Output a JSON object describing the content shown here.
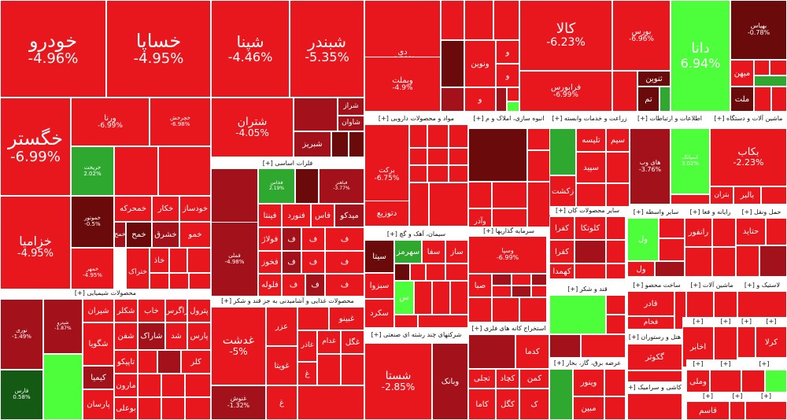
{
  "chart_data": {
    "type": "treemap",
    "colors": {
      "dark": "#6b0a0a",
      "maroon": "#a3121a",
      "red": "#e8161d",
      "bright": "#ff1a1a",
      "green": "#2fa82f",
      "lime": "#4cff3a",
      "dgreen": "#145a14"
    },
    "sections": [
      {
        "name": "محصولات شیمیایی [+]"
      },
      {
        "name": "فلزات اساسی [+]"
      },
      {
        "name": "محصولات غذایی و آشامیدنی به جز قند و شکر [+]"
      },
      {
        "name": "مواد و محصولات دارویی [+]"
      },
      {
        "name": "سیمان، آهک و گچ [+]"
      },
      {
        "name": "شرکتهای چند رشته ای صنعتی [+]"
      },
      {
        "name": "انبوه سازی، املاک و م [+]"
      },
      {
        "name": "سرمایه گذاریها [+]"
      },
      {
        "name": "استخراج کانه های فلزی [+]"
      },
      {
        "name": "زراعت و خدمات وابسته [+]"
      },
      {
        "name": "سایر محصولات کان [+]"
      },
      {
        "name": "قند و شکر [+]"
      },
      {
        "name": "عرضه برق، گاز، بخار [+]"
      },
      {
        "name": "اطلاعات و ارتباطات [+]"
      },
      {
        "name": "ماشین آلات و دستگاه [+]"
      },
      {
        "name": "سایر واسطه [+]"
      },
      {
        "name": "رایانه و فعا [+]"
      },
      {
        "name": "حمل ونقل [+]"
      },
      {
        "name": "ساخت محصو [+]"
      },
      {
        "name": "ماشین آلات [+]"
      },
      {
        "name": "لاستیک و [+]"
      },
      {
        "name": "هتل و رستوران [+]"
      },
      {
        "name": "کاشی و سرامیک [+]"
      }
    ],
    "tiles": [
      {
        "name": "خودرو",
        "change": "-4.96%"
      },
      {
        "name": "خساپا",
        "change": "-4.95%"
      },
      {
        "name": "شپنا",
        "change": "-4.46%"
      },
      {
        "name": "شبندر",
        "change": "-5.35%"
      },
      {
        "name": "دی",
        "change": "-4.89%"
      },
      {
        "name": "وبملت",
        "change": "-4.9%"
      },
      {
        "name": "ونوین",
        "change": ""
      },
      {
        "name": "کالا",
        "change": "-6.23%"
      },
      {
        "name": "فرابورس",
        "change": "-6.99%"
      },
      {
        "name": "بورس",
        "change": "-6.96%"
      },
      {
        "name": "ثنوین",
        "change": ""
      },
      {
        "name": "دانا",
        "change": "6.94%"
      },
      {
        "name": "بهپاس",
        "change": "-0.78%"
      },
      {
        "name": "میهن",
        "change": ""
      },
      {
        "name": "ملت",
        "change": ""
      },
      {
        "name": "خگستر",
        "change": "-6.99%"
      },
      {
        "name": "خزامیا",
        "change": "-4.95%"
      },
      {
        "name": "ورنا",
        "change": "-6.99%"
      },
      {
        "name": "خچرخش",
        "change": "-6.98%"
      },
      {
        "name": "خریخت",
        "change": "2.02%"
      },
      {
        "name": "خموتور",
        "change": "-0.5%"
      },
      {
        "name": "خمحرکه",
        "change": ""
      },
      {
        "name": "خکار",
        "change": ""
      },
      {
        "name": "خودساز",
        "change": ""
      },
      {
        "name": "خشرق",
        "change": ""
      },
      {
        "name": "خمهر",
        "change": "-4.95%"
      },
      {
        "name": "ختراک",
        "change": ""
      },
      {
        "name": "خزر",
        "change": ""
      },
      {
        "name": "شتران",
        "change": "-4.05%"
      },
      {
        "name": "شراز",
        "change": ""
      },
      {
        "name": "شاوان",
        "change": ""
      },
      {
        "name": "شبریز",
        "change": ""
      },
      {
        "name": "فولاد",
        "change": "-2.78%"
      },
      {
        "name": "فملی",
        "change": "-4.98%"
      },
      {
        "name": "فخاس",
        "change": "2.19%"
      },
      {
        "name": "فینتا",
        "change": ""
      },
      {
        "name": "فولاژ",
        "change": ""
      },
      {
        "name": "فخوز",
        "change": ""
      },
      {
        "name": "فلوله",
        "change": ""
      },
      {
        "name": "فنورد",
        "change": ""
      },
      {
        "name": "فاس",
        "change": ""
      },
      {
        "name": "میدکو",
        "change": ""
      },
      {
        "name": "برکت",
        "change": "-6.75%"
      },
      {
        "name": "دتوزیع",
        "change": ""
      },
      {
        "name": "سیتا",
        "change": ""
      },
      {
        "name": "سهرمز",
        "change": ""
      },
      {
        "name": "سبزوا",
        "change": ""
      },
      {
        "name": "سکرد",
        "change": ""
      },
      {
        "name": "شستا",
        "change": "-2.85%"
      },
      {
        "name": "وبانک",
        "change": ""
      },
      {
        "name": "وسپا",
        "change": "-6.99%"
      },
      {
        "name": "کگل",
        "change": ""
      },
      {
        "name": "کچاد",
        "change": ""
      },
      {
        "name": "کاما",
        "change": ""
      },
      {
        "name": "وپارس",
        "change": ""
      },
      {
        "name": "زکشت",
        "change": ""
      },
      {
        "name": "سیمرغ",
        "change": ""
      },
      {
        "name": "همراه",
        "change": "-3.76%"
      },
      {
        "name": "اسیاتک",
        "change": "3.02%"
      },
      {
        "name": "بکاب",
        "change": "-2.23%"
      },
      {
        "name": "غدشت",
        "change": "-5%"
      },
      {
        "name": "غنوش",
        "change": "-1.32%"
      },
      {
        "name": "نوری",
        "change": "-1.49%"
      },
      {
        "name": "فارس",
        "change": "0.58%"
      },
      {
        "name": "شپترو",
        "change": "-1.87%"
      },
      {
        "name": "شیران",
        "change": ""
      },
      {
        "name": "شگویا",
        "change": ""
      },
      {
        "name": "شفن",
        "change": ""
      },
      {
        "name": "شکلر",
        "change": ""
      },
      {
        "name": "پارسان",
        "change": ""
      },
      {
        "name": "آریا",
        "change": ""
      },
      {
        "name": "بوعلی",
        "change": ""
      },
      {
        "name": "مارون",
        "change": ""
      },
      {
        "name": "تاپیکو",
        "change": ""
      },
      {
        "name": "کرماشا",
        "change": ""
      },
      {
        "name": "زاگرس",
        "change": ""
      },
      {
        "name": "پترول",
        "change": ""
      },
      {
        "name": "پارس",
        "change": ""
      },
      {
        "name": "شیمیا",
        "change": ""
      },
      {
        "name": "کلر",
        "change": ""
      },
      {
        "name": "شاراک",
        "change": ""
      },
      {
        "name": "شدن",
        "change": ""
      },
      {
        "name": "غگل",
        "change": ""
      },
      {
        "name": "غبینو",
        "change": ""
      },
      {
        "name": "غدام",
        "change": ""
      },
      {
        "name": "غاذر",
        "change": ""
      },
      {
        "name": "غویتا",
        "change": ""
      },
      {
        "name": "غزر",
        "change": ""
      },
      {
        "name": "تاپیکو",
        "change": ""
      },
      {
        "name": "کچاد",
        "change": ""
      },
      {
        "name": "بهپاک",
        "change": ""
      },
      {
        "name": "قچار",
        "change": ""
      },
      {
        "name": "فخاس",
        "change": ""
      },
      {
        "name": "کگل",
        "change": ""
      },
      {
        "name": "کمنگنز",
        "change": ""
      },
      {
        "name": "کدما",
        "change": ""
      },
      {
        "name": "تاپکیش",
        "change": ""
      },
      {
        "name": "کاوه",
        "change": ""
      },
      {
        "name": "قثابت",
        "change": ""
      },
      {
        "name": "کرمان",
        "change": ""
      },
      {
        "name": "کبافق",
        "change": ""
      }
    ]
  },
  "labels": {
    "h_chem": "محصولات شیمیایی [+]",
    "h_metal": "فلزات اساسی [+]",
    "h_food": "محصولات غذایی و آشامیدنی به جز قند و شکر [+]",
    "h_pharma": "مواد و محصولات دارویی [+]",
    "h_cement": "سیمان، آهک و گچ [+]",
    "h_multi": "شرکتهای چند رشته ای صنعتی [+]",
    "h_build": "انبوه سازی، املاک و م [+]",
    "h_invest": "سرمایه گذاریها [+]",
    "h_mine": "استخراج کانه های فلزی [+]",
    "h_agri": "زراعت و خدمات وابسته [+]",
    "h_other_mine": "سایر محصولات کان [+]",
    "h_sugar": "قند و شکر [+]",
    "h_power": "عرضه برق، گاز، بخار [+]",
    "h_ict": "اطلاعات و ارتباطات [+]",
    "h_machine": "ماشین آلات و دستگاه [+]",
    "h_broker": "سایر واسطه [+]",
    "h_computer": "رایانه و فعا [+]",
    "h_transport": "حمل ونقل [+]",
    "h_construct": "ساخت محصو [+]",
    "h_machine2": "ماشین آلات [+]",
    "h_rubber": "لاستیک و [+]",
    "h_hotel": "هتل و رستوران [+]",
    "h_tile": "کاشی و سرامیک [+]",
    "h_plus": "[+]"
  },
  "tile_text": {
    "t_khodro": "خودرو",
    "c_khodro": "-4.96%",
    "t_khsapa": "خساپا",
    "c_khsapa": "-4.95%",
    "t_shepna": "شپنا",
    "c_shepna": "-4.46%",
    "t_shbandar": "شبندر",
    "c_shbandar": "-5.35%",
    "t_dey": "دی",
    "c_dey": "-4.89%",
    "t_vbmellat": "وبملت",
    "c_vbmellat": "-4.9%",
    "t_vnovin": "ونوین",
    "t_kala": "کالا",
    "c_kala": "-6.23%",
    "t_farabourse": "فرابورس",
    "c_farabourse": "-6.99%",
    "t_bourse": "بورس",
    "c_bourse": "-6.96%",
    "t_thnovin": "ثنوین",
    "t_dana": "دانا",
    "c_dana": "6.94%",
    "t_behpas": "بهپاس",
    "c_behpas": "-0.78%",
    "t_mihan": "میهن",
    "t_mellat": "ملت",
    "t_khgostar": "خگستر",
    "c_khgostar": "-6.99%",
    "t_khzamia": "خزامیا",
    "c_khzamia": "-4.95%",
    "t_vorna": "ورنا",
    "c_vorna": "-6.99%",
    "t_khcharkhesh": "خچرخش",
    "c_khcharkhesh": "-6.98%",
    "t_khrikht": "خریخت",
    "c_khrikht": "2.02%",
    "t_khmotor": "خموتور",
    "c_khmotor": "-0.5%",
    "t_khmoharekeh": "خمحرکه",
    "t_khkar": "خکار",
    "t_khodsaz": "خودساز",
    "t_khsharq": "خشرق",
    "t_khmehr": "خمهر",
    "c_khmehr": "-4.95%",
    "t_khterak": "ختراک",
    "t_khzar": "خزر",
    "t_khmo": "خمو",
    "t_khmah": "خمح",
    "t_khaz": "خاذ",
    "t_shtran": "شتران",
    "c_shtran": "-4.05%",
    "t_shraz": "شراز",
    "t_shavan": "شاوان",
    "t_shbriz": "شبریز",
    "t_foolad": "فولاد",
    "c_foolad": "-2.78%",
    "t_fmeli": "فملی",
    "c_fmeli": "-4.98%",
    "t_fkhas": "فخاس",
    "c_fkhas": "2.19%",
    "t_fbahonar": "فباهنر",
    "c_fbahonar": "-3.77%",
    "t_finta": "فینتا",
    "t_folaj": "فولاژ",
    "t_fkhoz": "فخوز",
    "t_flooleh": "فلوله",
    "t_fnoord": "فنورد",
    "t_fas": "فاس",
    "t_midko": "میدکو",
    "t_f": "ف",
    "t_barekat": "برکت",
    "c_barekat": "-6.75%",
    "t_dtozi": "دتوزیع",
    "t_sita": "سیتا",
    "t_sehormoz": "سهرمز",
    "t_sbzva": "سبزوا",
    "t_skord": "سکرد",
    "t_saz": "ساز",
    "t_sfa": "سفا",
    "t_shasta": "شستا",
    "c_shasta": "-2.85%",
    "t_vbank": "وبانک",
    "t_vsapa": "وسپا",
    "c_vsapa": "-6.99%",
    "t_sba": "صبا",
    "t_kgol": "کگل",
    "t_kchad": "کچاد",
    "t_kama": "کاما",
    "t_kdma": "کدما",
    "t_kmn": "کمن",
    "t_tajli": "تجلی",
    "t_vpars": "وپارس",
    "t_vazar": "وآذر",
    "t_taf": "ثاخت",
    "t_zkesht": "زکشت",
    "t_telise": "تلیسه",
    "t_sim": "سیم",
    "t_sepid": "سپید",
    "t_zmagh": "زماهان",
    "t_hamrah": "های وب",
    "c_hamrah": "-3.76%",
    "t_asiatek": "اسیاتک",
    "c_asiatek": "3.02%",
    "t_bkab": "بکاب",
    "c_bkab": "-2.23%",
    "t_baler": "بالبر",
    "t_btran": "بتران",
    "t_ghdasht": "غدشت",
    "c_ghdasht": "-5%",
    "t_ghnoosh": "غنوش",
    "c_ghnoosh": "-1.32%",
    "t_ghgol": "غگل",
    "t_ghbino": "غبینو",
    "t_ghdam": "غدام",
    "t_ghazar": "غاذر",
    "t_ghvita": "غویتا",
    "t_ezr": "عزر",
    "t_gh": "غ",
    "t_noori": "نوری",
    "c_noori": "-1.49%",
    "t_fars": "فارس",
    "c_fars": "0.58%",
    "t_shpetro": "شپترو",
    "c_shpetro": "-1.87%",
    "t_shiran": "شیران",
    "t_shgooya": "شگویا",
    "t_shafan": "شفن",
    "t_shkolor": "شکلر",
    "t_parsan": "پارسان",
    "t_arya": "آریا",
    "t_boali": "بوعلی",
    "t_maroon": "مارون",
    "t_tapiko": "تاپیکو",
    "t_kimia": "کیمیا",
    "t_zagros": "زاگرس",
    "t_petrol": "پترول",
    "t_pars": "پارس",
    "t_kalr": "کلر",
    "t_sharak": "شاراک",
    "t_shad": "شد",
    "t_khab": "خاب",
    "t_kfara": "کفرا",
    "t_kahmda": "کهمدا",
    "t_kalotka": "کلوتکا",
    "t_kgaz": "کگاز",
    "t_ketiran": "کترا",
    "t_gharb": "قارب",
    "t_fakhr": "فخام",
    "t_ghader": "قادر",
    "t_feraz": "فاراک",
    "t_khazar": "خزر",
    "t_akhabar": "اخابر",
    "t_kerla": "کرلا",
    "t_ghagh": "قچار",
    "t_geshavar": "گکوثر",
    "t_gandom": "بهپور",
    "t_mapna": "مپنا",
    "t_mobin": "مبین",
    "t_vinoor": "وینور",
    "t_ranf": "رانفور",
    "t_ap": "آپ",
    "t_hatid": "حتاید",
    "t_vol": "ول",
    "t_tanvin": "تنوین",
    "t_tm": "تم",
    "t_b": "ب",
    "t_vo": "و",
    "t_s": "س",
    "t_k": "ک",
    "t_ghemel": "وملی",
    "t_ghasem": "قاسم",
    "t_kafr": "کفری",
    "t_nnb": "نبورس"
  }
}
